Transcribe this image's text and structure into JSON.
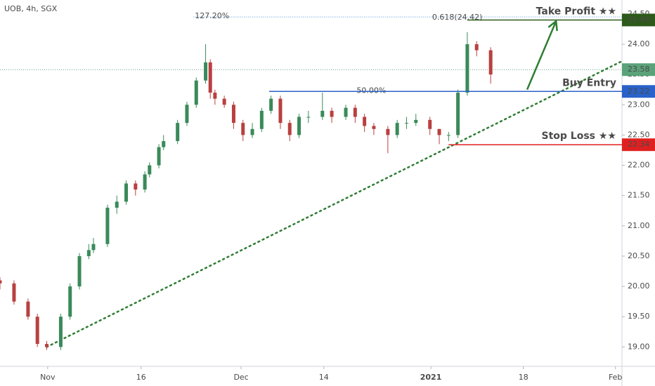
{
  "chart_data": {
    "type": "candlestick",
    "title": "UOB, 4h, SGX",
    "x": [
      0,
      3,
      6,
      8,
      10,
      13,
      15,
      17,
      19,
      20,
      23,
      25,
      27,
      29,
      31,
      32,
      34,
      35,
      38,
      40,
      42,
      44,
      45,
      46,
      48,
      50,
      52,
      54,
      56,
      58,
      60,
      62,
      64,
      66,
      69,
      71,
      74,
      76,
      78,
      80,
      83,
      85,
      87,
      89,
      92,
      94,
      96,
      98,
      100,
      102,
      105
    ],
    "open": [
      20.1,
      20.05,
      19.75,
      19.5,
      19.05,
      19.0,
      19.5,
      20.0,
      20.5,
      20.6,
      20.7,
      21.3,
      21.4,
      21.7,
      21.6,
      21.85,
      22.0,
      22.3,
      22.4,
      22.7,
      23.0,
      23.4,
      23.7,
      23.2,
      23.1,
      23.0,
      22.7,
      22.5,
      22.6,
      22.9,
      23.1,
      22.7,
      22.5,
      22.8,
      22.8,
      22.9,
      22.8,
      22.95,
      22.8,
      22.65,
      22.6,
      22.5,
      22.7,
      22.7,
      22.75,
      22.6,
      22.5,
      22.5,
      23.2,
      24.0,
      23.9
    ],
    "high": [
      20.15,
      20.1,
      19.8,
      19.55,
      19.1,
      19.55,
      20.05,
      20.55,
      20.7,
      20.8,
      21.35,
      21.5,
      21.75,
      21.75,
      21.9,
      22.05,
      22.35,
      22.5,
      22.75,
      23.05,
      23.45,
      24.0,
      23.75,
      23.25,
      23.15,
      23.05,
      22.75,
      22.7,
      22.95,
      23.15,
      23.15,
      22.75,
      22.85,
      22.9,
      23.2,
      22.95,
      23.0,
      23.0,
      22.85,
      22.7,
      22.65,
      22.75,
      22.8,
      22.85,
      22.8,
      22.6,
      22.55,
      23.25,
      24.2,
      24.05,
      23.95
    ],
    "low": [
      19.95,
      19.7,
      19.45,
      19.0,
      18.95,
      18.95,
      19.45,
      19.95,
      20.45,
      20.55,
      20.65,
      21.2,
      21.35,
      21.5,
      21.55,
      21.8,
      21.95,
      22.25,
      22.35,
      22.65,
      22.95,
      23.35,
      23.1,
      23.0,
      22.95,
      22.6,
      22.4,
      22.45,
      22.55,
      22.85,
      22.6,
      22.4,
      22.45,
      22.7,
      22.75,
      22.7,
      22.75,
      22.7,
      22.55,
      22.5,
      22.2,
      22.45,
      22.6,
      22.65,
      22.5,
      22.35,
      22.4,
      22.45,
      23.15,
      23.8,
      23.35
    ],
    "close": [
      20.05,
      19.75,
      19.5,
      19.05,
      19.0,
      19.5,
      20.0,
      20.5,
      20.6,
      20.7,
      21.3,
      21.4,
      21.7,
      21.6,
      21.85,
      22.0,
      22.3,
      22.4,
      22.7,
      23.0,
      23.4,
      23.7,
      23.2,
      23.1,
      23.0,
      22.7,
      22.5,
      22.6,
      22.9,
      23.1,
      22.7,
      22.5,
      22.8,
      22.8,
      22.9,
      22.8,
      22.95,
      22.8,
      22.65,
      22.6,
      22.5,
      22.7,
      22.7,
      22.75,
      22.6,
      22.5,
      22.5,
      23.2,
      24.0,
      23.9,
      23.5
    ],
    "up_color": "#3a8a5a",
    "down_color": "#b94040",
    "xlim": [
      0,
      133.1
    ],
    "xticks": [
      {
        "value": 10.2,
        "label": "Nov"
      },
      {
        "value": 30.2,
        "label": "16"
      },
      {
        "value": 51.6,
        "label": "Dec"
      },
      {
        "value": 69.3,
        "label": "14"
      },
      {
        "value": 92.2,
        "label": "2021"
      },
      {
        "value": 112,
        "label": "18"
      },
      {
        "value": 131.7,
        "label": "Feb"
      }
    ],
    "ylim": [
      18.68,
      24.73
    ],
    "yticks": [
      {
        "value": 19,
        "label": "19.00"
      },
      {
        "value": 19.5,
        "label": "19.50"
      },
      {
        "value": 20,
        "label": "20.00"
      },
      {
        "value": 20.5,
        "label": "20.50"
      },
      {
        "value": 21,
        "label": "21.00"
      },
      {
        "value": 21.5,
        "label": "21.50"
      },
      {
        "value": 22,
        "label": "22.00"
      },
      {
        "value": 22.5,
        "label": "22.50"
      },
      {
        "value": 23,
        "label": "23.00"
      },
      {
        "value": 23.5,
        "label": "23.50"
      },
      {
        "value": 24,
        "label": "24.00"
      },
      {
        "value": 24.5,
        "label": "24.50"
      }
    ],
    "grid": false,
    "current_price": {
      "value": 23.58,
      "label": "23.58",
      "color": "#5aa37a"
    },
    "levels": [
      {
        "name": "Take Profit ★★",
        "value": 24.4,
        "label": "24.40",
        "x_start": 100,
        "color": "#2d5a1b"
      },
      {
        "name": "Buy Entry",
        "value": 23.22,
        "label": "23.22",
        "x_start": 57.6,
        "color": "#2962c9"
      },
      {
        "name": "Stop Loss ★★",
        "value": 22.34,
        "label": "22.34",
        "x_start": 96,
        "color": "#e02020"
      }
    ],
    "fib_levels": [
      {
        "label": "127.20%",
        "value": 24.45,
        "x_start": 41.4,
        "color": "#4a90d9"
      },
      {
        "label": "50.00%",
        "value": 23.22,
        "x_start": 76,
        "color": "#7e8fb8"
      }
    ],
    "fib_note": "0.618(24.42)",
    "trendline": {
      "points": [
        [
          10,
          19.0
        ],
        [
          133.1,
          23.72
        ]
      ],
      "color": "#2e7d32"
    },
    "arrow": {
      "points": [
        [
          112.8,
          23.25
        ],
        [
          119,
          24.38
        ]
      ],
      "color": "#2e7d32"
    }
  }
}
